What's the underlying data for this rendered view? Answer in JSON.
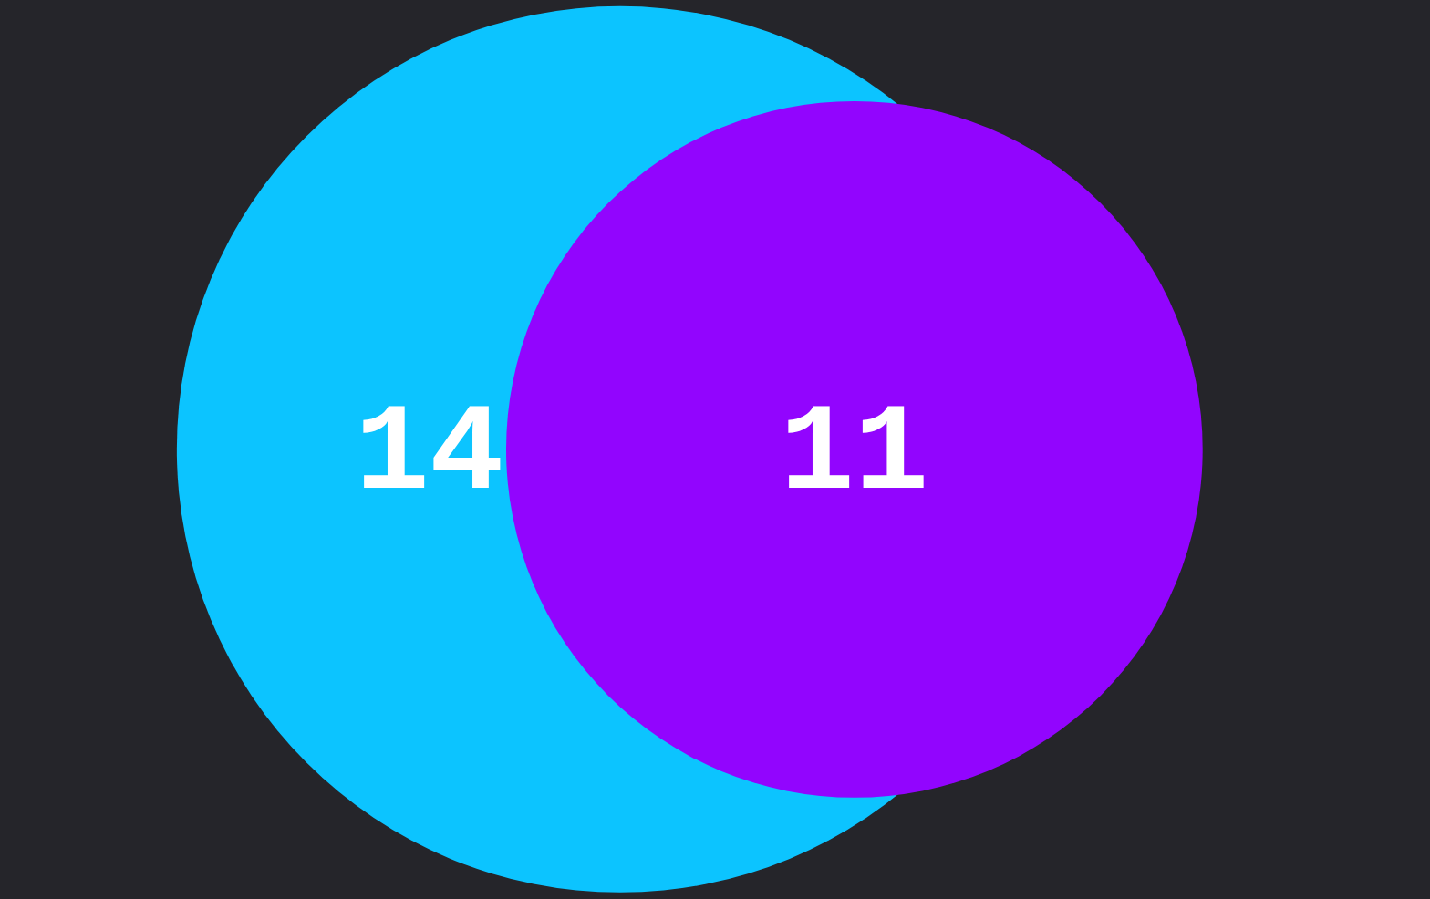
{
  "chart_data": {
    "type": "other",
    "categories": [
      null,
      null
    ],
    "values": [
      14,
      11
    ],
    "colors": [
      "#0cc4ff",
      "#9205fe"
    ],
    "data_labels": true
  }
}
